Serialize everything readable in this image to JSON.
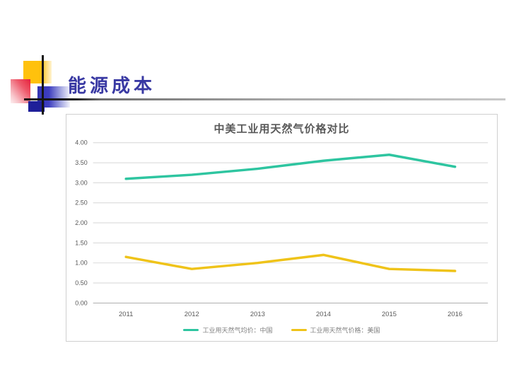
{
  "slide": {
    "title": "能源成本",
    "accent": {
      "yellow": "#FFC10D",
      "red": "#E6223A",
      "blue": "#3434B4",
      "navy": "#1F1F99",
      "title_color": "#3939A3"
    }
  },
  "chart_data": {
    "type": "line",
    "title": "中美工业用天然气价格对比",
    "categories": [
      "2011",
      "2012",
      "2013",
      "2014",
      "2015",
      "2016"
    ],
    "series": [
      {
        "name": "工业用天然气均价：中国",
        "color": "#2EC5A0",
        "values": [
          3.1,
          3.2,
          3.35,
          3.55,
          3.7,
          3.4
        ]
      },
      {
        "name": "工业用天然气价格：美国",
        "color": "#EFC319",
        "values": [
          1.15,
          0.85,
          1.0,
          1.2,
          0.85,
          0.8
        ]
      }
    ],
    "ylim": [
      0,
      4
    ],
    "ytick_step": 0.5,
    "ytick_labels": [
      "0.00",
      "0.50",
      "1.00",
      "1.50",
      "2.00",
      "2.50",
      "3.00",
      "3.50",
      "4.00"
    ],
    "grid": true,
    "legend_position": "bottom",
    "text_color": "#595959",
    "grid_color": "#d6d6d6",
    "axis_color": "#ababab"
  }
}
